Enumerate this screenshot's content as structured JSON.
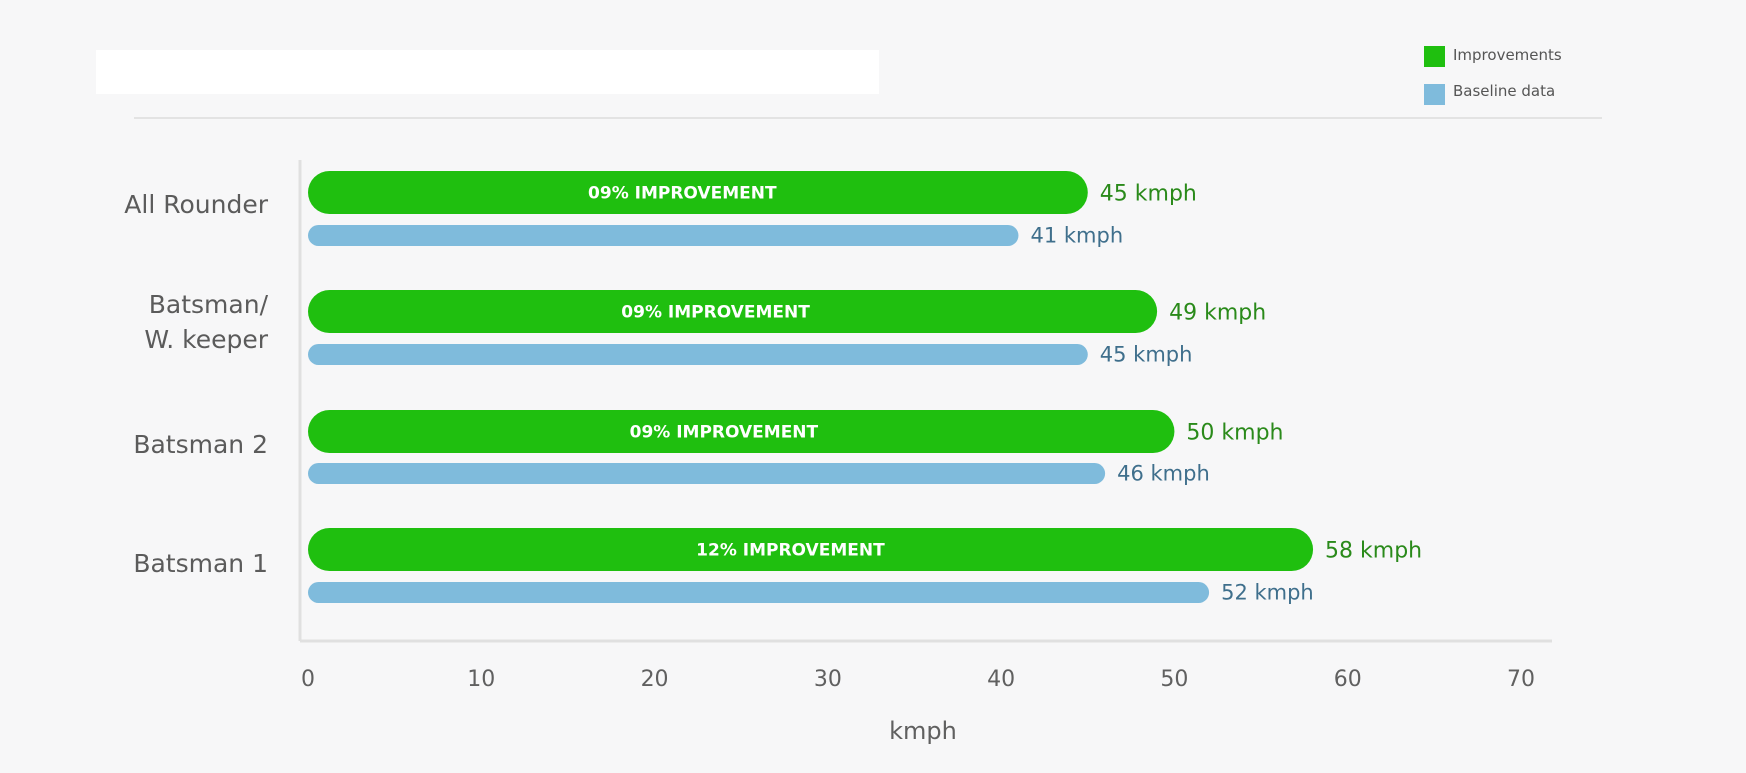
{
  "colors": {
    "improvement": "#1fbf0f",
    "baseline": "#7fbbdc",
    "improvement_label": "#2a8a1a",
    "baseline_label": "#3f6f8c",
    "axis": "#e0e0e0",
    "divider": "#e3e3e3"
  },
  "chart_data": {
    "type": "bar",
    "orientation": "horizontal",
    "title": "",
    "xlabel": "kmph",
    "ylabel": "",
    "xlim": [
      0,
      70
    ],
    "xticks": [
      0,
      10,
      20,
      30,
      40,
      50,
      60,
      70
    ],
    "grid": false,
    "legend_position": "top-right",
    "categories": [
      "All Rounder",
      "Batsman/ W. keeper",
      "Batsman 2",
      "Batsman 1"
    ],
    "category_lines": [
      [
        "All Rounder"
      ],
      [
        "Batsman/",
        "W. keeper"
      ],
      [
        "Batsman 2"
      ],
      [
        "Batsman 1"
      ]
    ],
    "series": [
      {
        "name": "Improvements",
        "values": [
          45,
          49,
          50,
          58
        ],
        "value_labels": [
          "45 kmph",
          "49 kmph",
          "50 kmph",
          "58 kmph"
        ],
        "inner_labels": [
          "09% IMPROVEMENT",
          "09% IMPROVEMENT",
          "09% IMPROVEMENT",
          "12% IMPROVEMENT"
        ]
      },
      {
        "name": "Baseline data",
        "values": [
          41,
          45,
          46,
          52
        ],
        "value_labels": [
          "41 kmph",
          "45 kmph",
          "46 kmph",
          "52 kmph"
        ]
      }
    ]
  }
}
